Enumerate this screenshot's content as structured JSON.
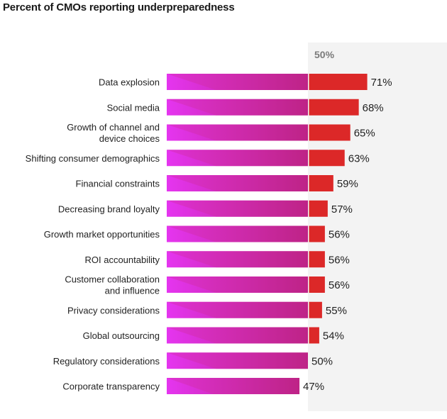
{
  "chart_data": {
    "type": "bar",
    "orientation": "horizontal",
    "title": "Percent of CMOs reporting underpreparedness",
    "reference_label": "50%",
    "reference_value": 50,
    "categories": [
      [
        "Data explosion"
      ],
      [
        "Social media"
      ],
      [
        "Growth of channel and",
        "device choices"
      ],
      [
        "Shifting consumer demographics"
      ],
      [
        "Financial constraints"
      ],
      [
        "Decreasing brand loyalty"
      ],
      [
        "Growth market opportunities"
      ],
      [
        "ROI accountability"
      ],
      [
        "Customer collaboration",
        "and influence"
      ],
      [
        "Privacy considerations"
      ],
      [
        "Global outsourcing"
      ],
      [
        "Regulatory considerations"
      ],
      [
        "Corporate transparency"
      ]
    ],
    "values": [
      71,
      68,
      65,
      63,
      59,
      57,
      56,
      56,
      56,
      55,
      54,
      50,
      47
    ],
    "value_labels": [
      "71%",
      "68%",
      "65%",
      "63%",
      "59%",
      "57%",
      "56%",
      "56%",
      "56%",
      "55%",
      "54%",
      "50%",
      "47%"
    ],
    "colors": {
      "gradient_start": "#e535f0",
      "gradient_end": "#b4207c",
      "gradient_accent": "#d02a9c",
      "above_reference": "#dc2828",
      "reference_band": "#f3f3f3"
    }
  }
}
